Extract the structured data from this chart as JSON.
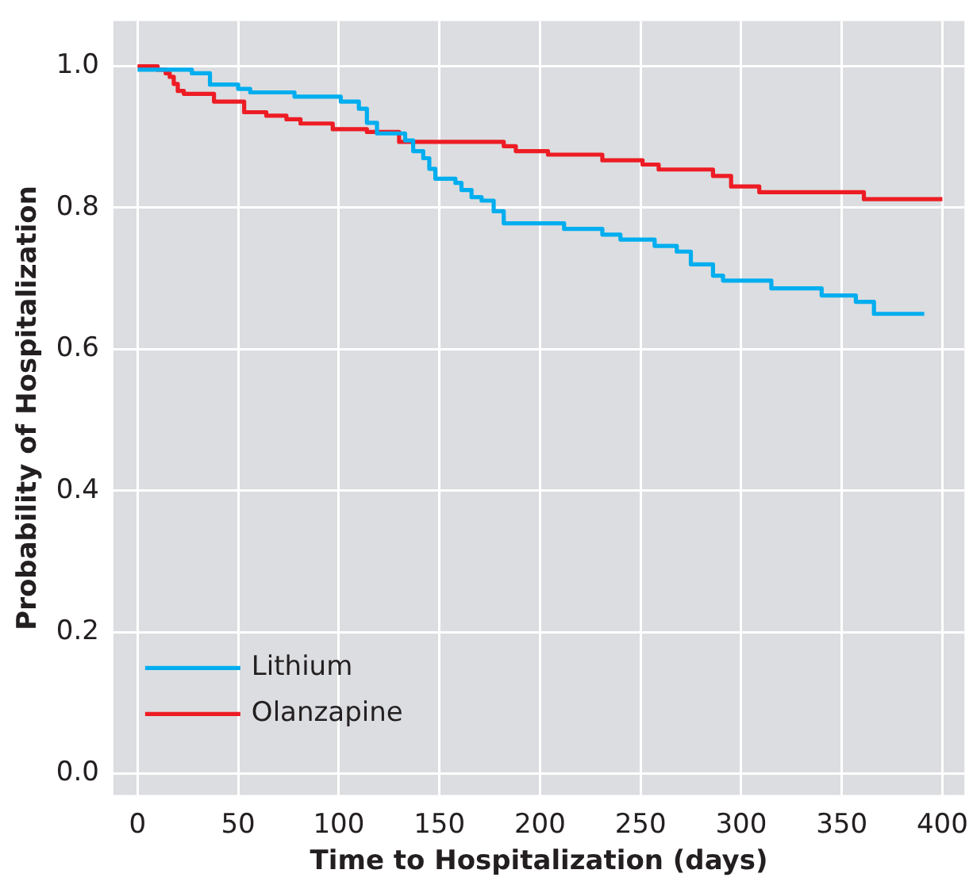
{
  "chart_data": {
    "type": "step",
    "xlabel": "Time to Hospitalization (days)",
    "ylabel": "Probability of Hospitalization",
    "xlim": [
      -12,
      411
    ],
    "ylim": [
      -0.03,
      1.064
    ],
    "xticks": [
      0,
      50,
      100,
      150,
      200,
      250,
      300,
      350,
      400
    ],
    "yticks": [
      {
        "value": 0,
        "label": "0.0"
      },
      {
        "value": 0.2,
        "label": "0.2"
      },
      {
        "value": 0.4,
        "label": "0.4"
      },
      {
        "value": 0.6,
        "label": "0.6"
      },
      {
        "value": 0.8,
        "label": "0.8"
      },
      {
        "value": 1,
        "label": "1.0"
      }
    ],
    "grid": true,
    "legend": "bottom left",
    "series": [
      {
        "name": "Lithium",
        "color": "#00aeef",
        "x": [
          0,
          27,
          36,
          50,
          56,
          78,
          101,
          110,
          114,
          119,
          133,
          137,
          142,
          145,
          148,
          158,
          161,
          166,
          171,
          177,
          182,
          212,
          231,
          240,
          257,
          268,
          275,
          286,
          291,
          315,
          340,
          357,
          366,
          391
        ],
        "values": [
          0.995,
          0.99,
          0.974,
          0.968,
          0.963,
          0.957,
          0.95,
          0.94,
          0.92,
          0.905,
          0.895,
          0.88,
          0.87,
          0.855,
          0.841,
          0.835,
          0.825,
          0.815,
          0.81,
          0.795,
          0.778,
          0.77,
          0.762,
          0.755,
          0.746,
          0.738,
          0.72,
          0.704,
          0.697,
          0.686,
          0.676,
          0.667,
          0.65,
          0.65
        ]
      },
      {
        "name": "Olanzapine",
        "color": "#ed1c24",
        "x": [
          0,
          10,
          14,
          16,
          18,
          20,
          23,
          38,
          53,
          64,
          74,
          81,
          97,
          114,
          130,
          182,
          188,
          204,
          231,
          251,
          259,
          286,
          295,
          309,
          361,
          400
        ],
        "values": [
          1,
          0.995,
          0.99,
          0.985,
          0.975,
          0.965,
          0.961,
          0.95,
          0.935,
          0.93,
          0.925,
          0.919,
          0.911,
          0.907,
          0.893,
          0.887,
          0.88,
          0.875,
          0.867,
          0.861,
          0.854,
          0.845,
          0.83,
          0.822,
          0.812,
          0.812
        ]
      }
    ]
  }
}
